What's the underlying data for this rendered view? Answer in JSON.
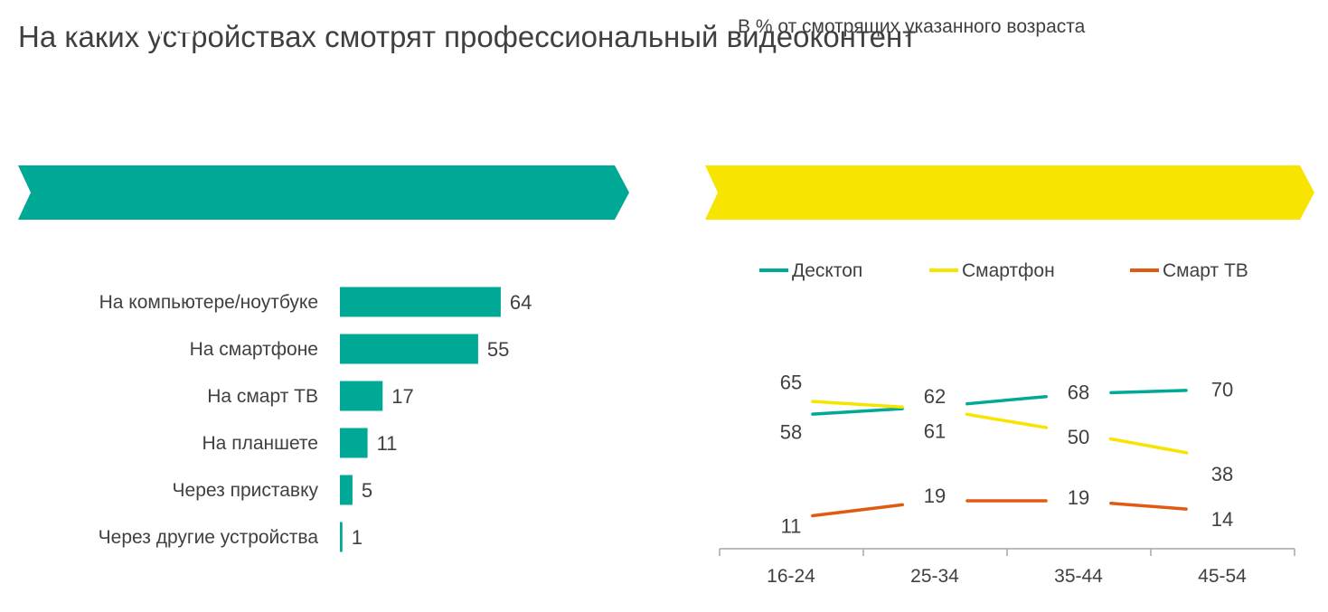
{
  "title": "На каких устройствах смотрят профессиональный видеоконтент",
  "colors": {
    "teal": "#00A896",
    "yellow": "#F7E400",
    "orange": "#E05A12",
    "text": "#404040",
    "axis": "#A6A6A6"
  },
  "chart_data": [
    {
      "type": "bar",
      "banner": "В % от смотрящих",
      "categories": [
        "На компьютере/ноутбуке",
        "На смартфоне",
        "На смарт ТВ",
        "На планшете",
        "Через приставку",
        "Через другие устройства"
      ],
      "values": [
        64,
        55,
        17,
        11,
        5,
        1
      ],
      "orientation": "horizontal",
      "color": "#00A896"
    },
    {
      "type": "line",
      "banner": "В % от смотрящих указанного возраста",
      "categories": [
        "16-24",
        "25-34",
        "35-44",
        "45-54"
      ],
      "legend_position": "top",
      "series": [
        {
          "name": "Десктоп",
          "values": [
            58,
            62,
            68,
            70
          ],
          "color": "#00A896"
        },
        {
          "name": "Смартфон",
          "values": [
            65,
            61,
            50,
            38
          ],
          "color": "#F7E400"
        },
        {
          "name": "Смарт ТВ",
          "values": [
            11,
            19,
            19,
            14
          ],
          "color": "#E05A12"
        }
      ]
    }
  ]
}
